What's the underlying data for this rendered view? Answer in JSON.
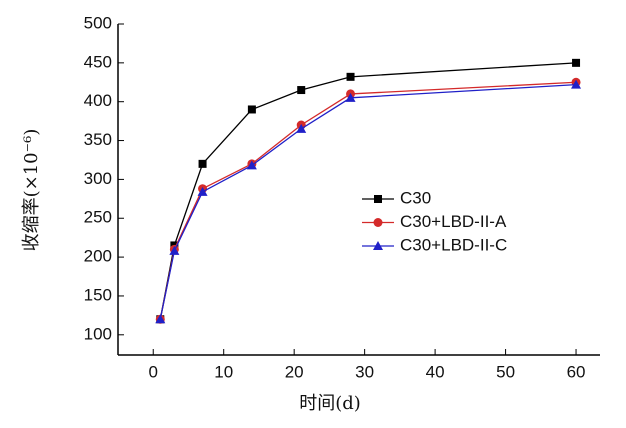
{
  "chart_data": {
    "type": "line",
    "x_label": "时间(d)",
    "y_label": "收缩率(×10⁻⁶)",
    "x": [
      1,
      3,
      7,
      14,
      21,
      28,
      60
    ],
    "series": [
      {
        "name": "C30",
        "color": "#000000",
        "marker": "square",
        "values": [
          120,
          215,
          320,
          390,
          415,
          432,
          450
        ]
      },
      {
        "name": "C30+LBD-II-A",
        "color": "#d42a2a",
        "marker": "circle",
        "values": [
          120,
          210,
          288,
          320,
          370,
          410,
          425
        ]
      },
      {
        "name": "C30+LBD-II-C",
        "color": "#2020c8",
        "marker": "triangle",
        "values": [
          120,
          208,
          284,
          318,
          365,
          405,
          422
        ]
      }
    ],
    "xlim": [
      -5,
      63.4
    ],
    "xticks": [
      0,
      10,
      20,
      30,
      40,
      50,
      60
    ],
    "ylim": [
      74,
      500
    ],
    "yticks": [
      100,
      150,
      200,
      250,
      300,
      350,
      400,
      450,
      500
    ],
    "legend": "right"
  }
}
